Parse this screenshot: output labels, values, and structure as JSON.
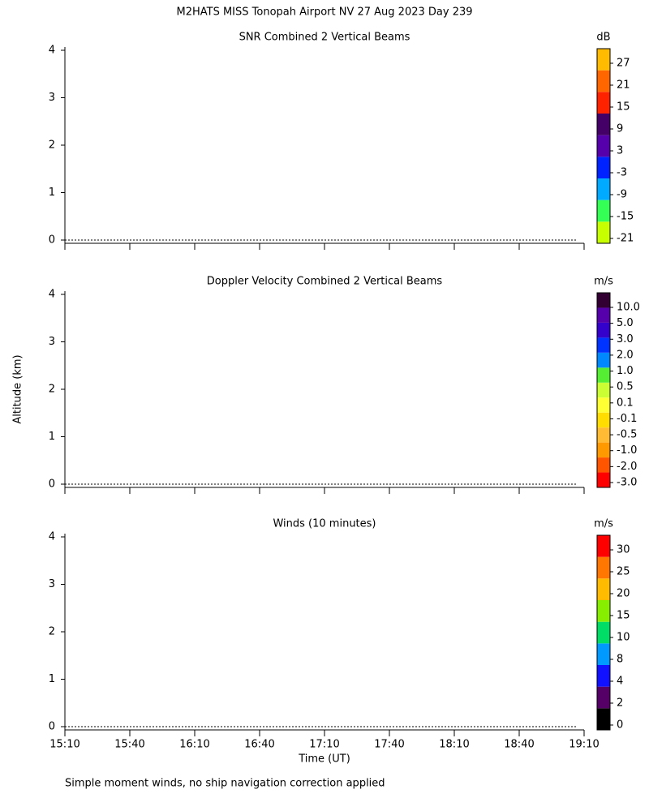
{
  "title": "M2HATS MISS Tonopah Airport NV  27 Aug 2023 Day 239",
  "y_axis_label": "Altitude (km)",
  "x_axis_label": "Time (UT)",
  "footnote": "Simple moment winds, no ship navigation correction applied",
  "chart_data": [
    {
      "type": "heatmap",
      "title": "SNR Combined 2 Vertical Beams",
      "ylim": [
        0,
        4
      ],
      "yticks": [
        0,
        1,
        2,
        3,
        4
      ],
      "xticks": [
        "15:10",
        "15:40",
        "16:10",
        "16:40",
        "17:10",
        "17:40",
        "18:10",
        "18:40",
        "19:10"
      ],
      "colorbar": {
        "unit": "dB",
        "colors": [
          "#c8ff00",
          "#33ff55",
          "#00aaff",
          "#0022ff",
          "#5500aa",
          "#440066",
          "#ff2200",
          "#ff6600",
          "#ffbb00"
        ],
        "ticks": [
          -21,
          -15,
          -9,
          -3,
          3,
          9,
          15,
          21,
          27
        ]
      }
    },
    {
      "type": "heatmap",
      "title": "Doppler Velocity Combined 2 Vertical Beams",
      "ylim": [
        0,
        4
      ],
      "yticks": [
        0,
        1,
        2,
        3,
        4
      ],
      "xticks": [
        "15:10",
        "15:40",
        "16:10",
        "16:40",
        "17:10",
        "17:40",
        "18:10",
        "18:40",
        "19:10"
      ],
      "colorbar": {
        "unit": "m/s",
        "colors": [
          "#ff0000",
          "#ff5500",
          "#ff9900",
          "#ffbb33",
          "#ffdd00",
          "#ffff33",
          "#ccff33",
          "#55ee33",
          "#0088ff",
          "#0033ff",
          "#3300cc",
          "#5500aa",
          "#330033"
        ],
        "ticks": [
          {
            "value": -3,
            "label": "-3.0"
          },
          {
            "value": -2,
            "label": "-2.0"
          },
          {
            "value": -1,
            "label": "-1.0"
          },
          -0.5,
          -0.1,
          0.1,
          0.5,
          {
            "value": 1,
            "label": "1.0"
          },
          {
            "value": 2,
            "label": "2.0"
          },
          {
            "value": 3,
            "label": "3.0"
          },
          {
            "value": 5,
            "label": "5.0"
          },
          {
            "value": 10,
            "label": "10.0"
          }
        ]
      }
    },
    {
      "type": "barbs",
      "title": "Winds (10 minutes)",
      "ylim": [
        0,
        4
      ],
      "yticks": [
        0,
        1,
        2,
        3,
        4
      ],
      "xticks": [
        "15:10",
        "15:40",
        "16:10",
        "16:40",
        "17:10",
        "17:40",
        "18:10",
        "18:40",
        "19:10"
      ],
      "colorbar": {
        "unit": "m/s",
        "colors": [
          "#000000",
          "#550066",
          "#1111ff",
          "#0099ff",
          "#00dd66",
          "#88ee00",
          "#ffbb00",
          "#ff7700",
          "#ff0000"
        ],
        "ticks": [
          0,
          2,
          4,
          8,
          10,
          15,
          20,
          25,
          30
        ]
      }
    }
  ]
}
